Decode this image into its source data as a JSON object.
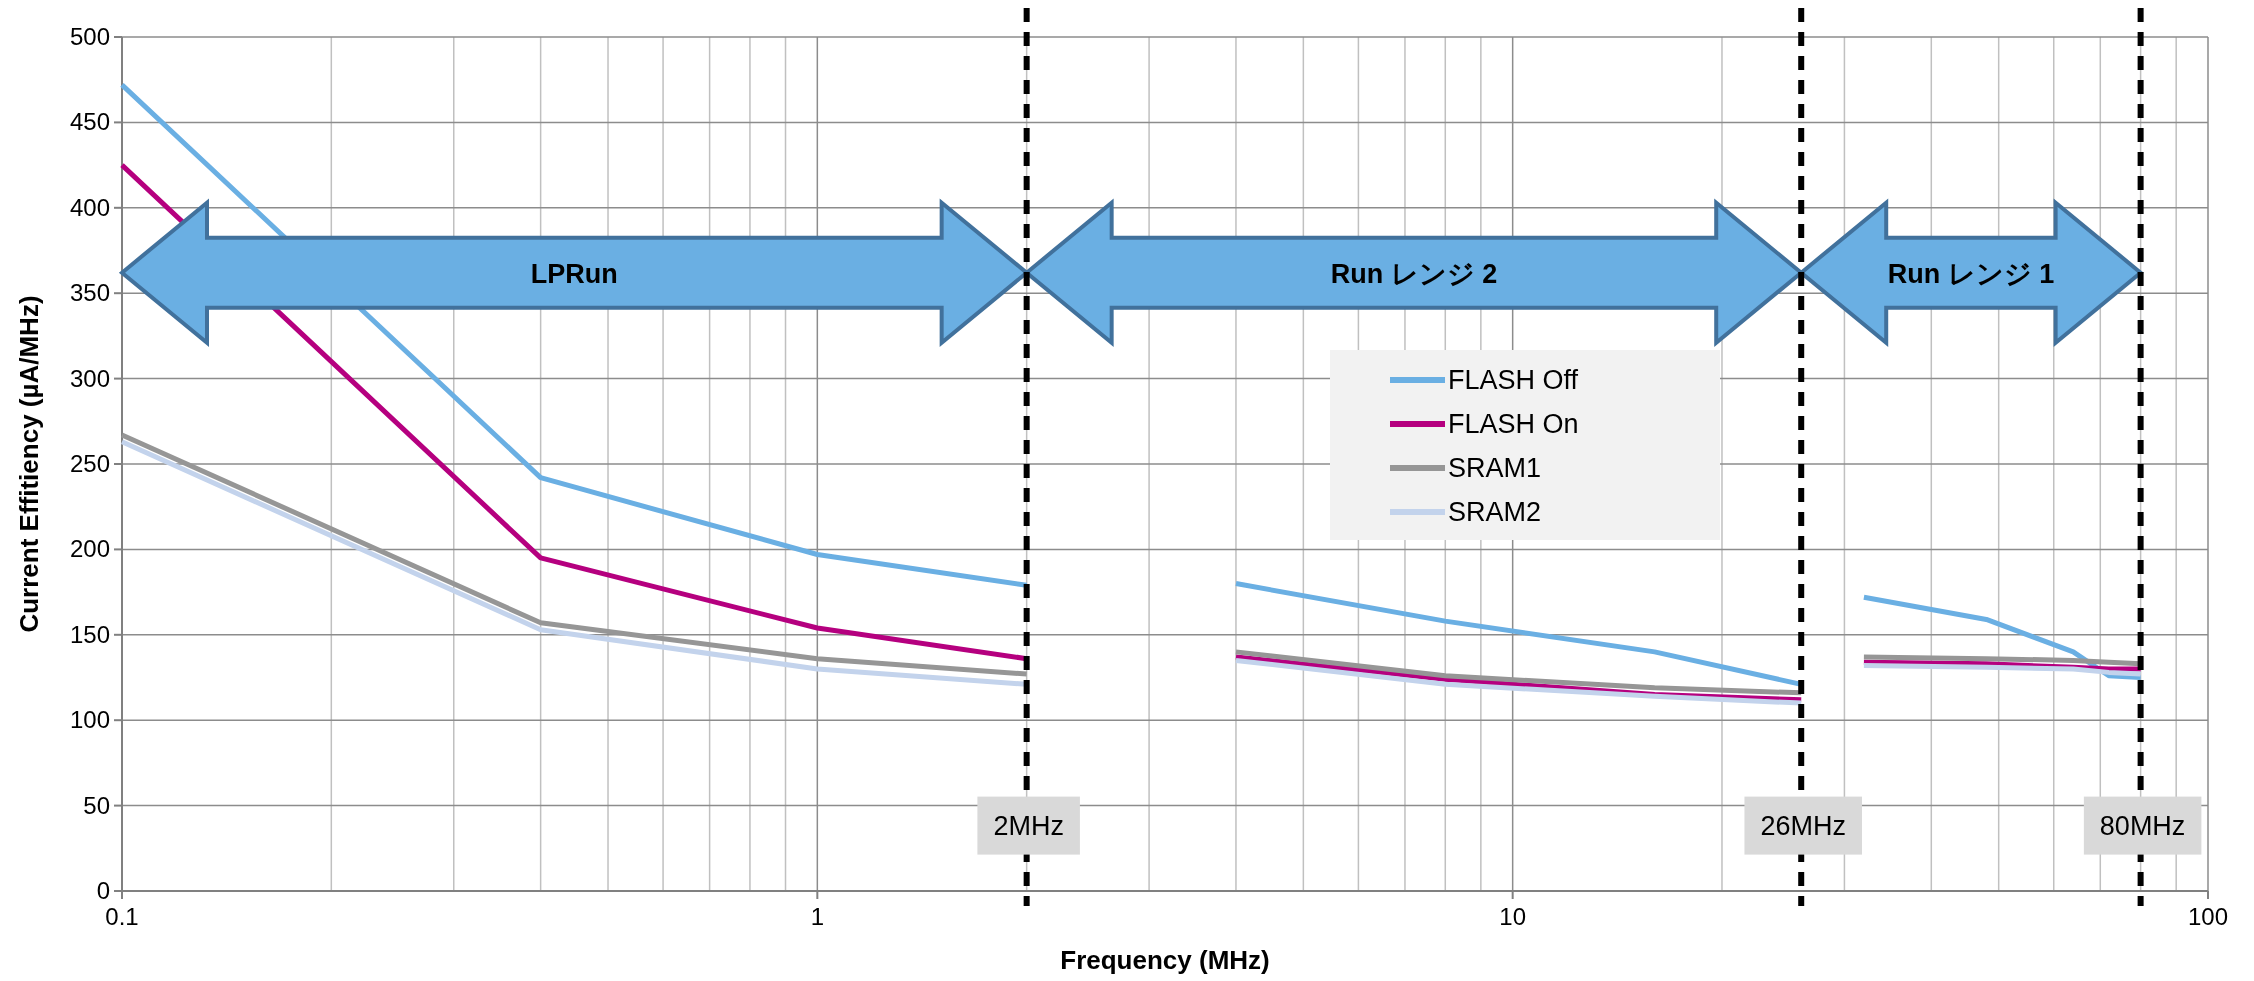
{
  "chart_data": {
    "type": "line",
    "xlabel": "Frequency (MHz)",
    "ylabel": "Current Effitiency (µA/MHz)",
    "log": "x",
    "xlim": [
      0.1,
      100
    ],
    "xticks": [
      0.1,
      1,
      10,
      100
    ],
    "ylim": [
      0,
      500
    ],
    "yticks": [
      0,
      50,
      100,
      150,
      200,
      250,
      300,
      350,
      400,
      450,
      500
    ],
    "grid": true,
    "legend": "right",
    "line_style": "solid",
    "x": [
      0.1,
      0.4,
      1,
      2,
      4,
      8,
      16,
      26,
      32,
      48,
      64,
      72,
      80
    ],
    "annotations": [
      "LPRun",
      "Run レンジ 2",
      "Run レンジ 1"
    ],
    "series": [
      {
        "name": "FLASH Off",
        "color": "#6aafe3",
        "values": [
          472,
          242,
          197,
          179,
          180,
          158,
          140,
          121,
          172,
          159,
          140,
          126,
          125
        ]
      },
      {
        "name": "FLASH On",
        "color": "#b5007f",
        "values": [
          425,
          195,
          154,
          136,
          137,
          124,
          115,
          112,
          134,
          133,
          131,
          130,
          130
        ]
      },
      {
        "name": "SRAM1",
        "color": "#969696",
        "values": [
          267,
          157,
          136,
          127,
          140,
          126,
          119,
          116,
          137,
          136,
          135,
          134,
          133
        ]
      },
      {
        "name": "SRAM2",
        "color": "#c3d3ec",
        "values": [
          263,
          153,
          130,
          121,
          135,
          121,
          114,
          110,
          132,
          131,
          130,
          128,
          127
        ]
      }
    ],
    "ref_lines": [
      {
        "axis": "x",
        "value": 2,
        "label": "2MHz",
        "color": "#000000",
        "line_style": "dashed"
      },
      {
        "axis": "x",
        "value": 26,
        "label": "26MHz",
        "color": "#000000",
        "line_style": "dashed"
      },
      {
        "axis": "x",
        "value": 80,
        "label": "80MHz",
        "color": "#000000",
        "line_style": "dashed"
      }
    ]
  }
}
